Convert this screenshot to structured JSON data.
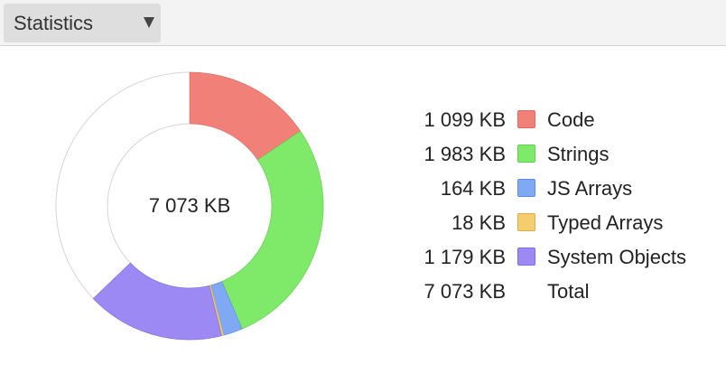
{
  "toolbar": {
    "view_selector": {
      "selected": "Statistics",
      "icon": "chevron-down-icon"
    }
  },
  "chart_data": {
    "type": "pie",
    "center_label": "7 073 KB",
    "total_kb": 7073,
    "empty_color": "#ffffff",
    "slices": [
      {
        "name": "Code",
        "size_label": "1 099 KB",
        "value": 1099,
        "color": "#f08078",
        "border": "#e06a62"
      },
      {
        "name": "Strings",
        "size_label": "1 983 KB",
        "value": 1983,
        "color": "#7fea6a",
        "border": "#62cf4c"
      },
      {
        "name": "JS Arrays",
        "size_label": "164 KB",
        "value": 164,
        "color": "#7fa8f5",
        "border": "#5f8de6"
      },
      {
        "name": "Typed Arrays",
        "size_label": "18 KB",
        "value": 18,
        "color": "#f5cd6e",
        "border": "#dbae45"
      },
      {
        "name": "System Objects",
        "size_label": "1 179 KB",
        "value": 1179,
        "color": "#9d89f3",
        "border": "#7f6ce0"
      }
    ],
    "total_row": {
      "size_label": "7 073 KB",
      "name": "Total"
    }
  }
}
